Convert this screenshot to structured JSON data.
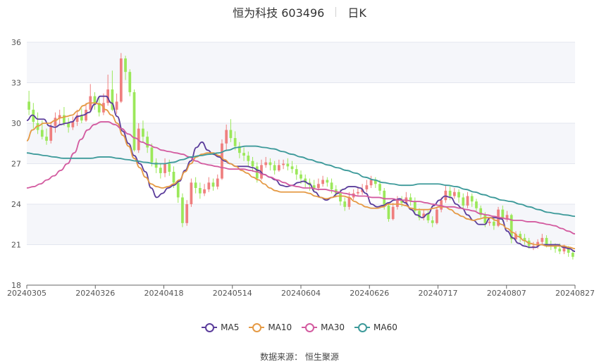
{
  "header": {
    "stock": "恒为科技 603496",
    "period": "日K"
  },
  "source": "数据来源：  恒生聚源",
  "colors": {
    "up": "#ef7f7f",
    "down": "#9be85a",
    "MA5": "#5b3d9b",
    "MA10": "#e59a45",
    "MA30": "#d35ba0",
    "MA60": "#3d9a9a",
    "band": "#f5f6fa",
    "grid": "#e3e6ef"
  },
  "chart_data": {
    "type": "candlestick",
    "title": "恒为科技 603496",
    "ylim": [
      18,
      36
    ],
    "yticks": [
      18,
      21,
      24,
      27,
      30,
      33,
      36
    ],
    "xticks": [
      "20240305",
      "20240326",
      "20240418",
      "20240514",
      "20240604",
      "20240626",
      "20240717",
      "20240807",
      "20240827"
    ],
    "grid": true,
    "legend_position": "bottom",
    "candles": [
      [
        31.6,
        31.0,
        32.4,
        30.6
      ],
      [
        31.0,
        30.1,
        31.5,
        29.6
      ],
      [
        30.0,
        29.5,
        30.8,
        29.2
      ],
      [
        29.5,
        29.0,
        30.2,
        28.8
      ],
      [
        29.0,
        28.7,
        29.6,
        28.4
      ],
      [
        28.7,
        29.8,
        30.1,
        28.5
      ],
      [
        29.8,
        30.4,
        30.8,
        29.3
      ],
      [
        30.4,
        30.6,
        31.0,
        29.9
      ],
      [
        30.6,
        30.0,
        31.2,
        29.8
      ],
      [
        30.0,
        29.7,
        30.4,
        29.3
      ],
      [
        29.7,
        30.1,
        30.5,
        29.5
      ],
      [
        30.1,
        30.6,
        31.0,
        29.8
      ],
      [
        30.6,
        30.2,
        31.1,
        30.0
      ],
      [
        30.2,
        31.0,
        31.5,
        30.1
      ],
      [
        31.0,
        32.0,
        32.9,
        30.8
      ],
      [
        32.0,
        31.5,
        32.3,
        31.0
      ],
      [
        31.5,
        30.8,
        31.9,
        30.5
      ],
      [
        30.8,
        31.5,
        32.2,
        30.6
      ],
      [
        31.5,
        32.5,
        33.6,
        31.3
      ],
      [
        32.5,
        31.0,
        33.9,
        30.9
      ],
      [
        31.0,
        31.6,
        32.2,
        30.7
      ],
      [
        31.6,
        34.8,
        35.2,
        31.5
      ],
      [
        34.8,
        33.8,
        35.0,
        33.2
      ],
      [
        33.8,
        32.3,
        34.0,
        32.0
      ],
      [
        32.3,
        28.0,
        32.5,
        27.9
      ],
      [
        28.0,
        29.6,
        30.0,
        27.8
      ],
      [
        29.6,
        29.0,
        30.2,
        28.6
      ],
      [
        29.0,
        28.2,
        29.4,
        27.8
      ],
      [
        28.2,
        27.1,
        28.5,
        26.8
      ],
      [
        27.1,
        26.7,
        27.4,
        26.3
      ],
      [
        26.7,
        26.3,
        27.0,
        25.9
      ],
      [
        26.3,
        27.0,
        27.4,
        26.0
      ],
      [
        27.0,
        26.4,
        27.3,
        26.1
      ],
      [
        26.4,
        25.6,
        26.8,
        25.2
      ],
      [
        25.6,
        24.5,
        25.8,
        24.1
      ],
      [
        24.5,
        22.6,
        24.8,
        22.3
      ],
      [
        22.6,
        24.0,
        24.3,
        22.4
      ],
      [
        24.0,
        25.6,
        25.9,
        23.8
      ],
      [
        25.6,
        25.2,
        26.0,
        24.8
      ],
      [
        25.2,
        24.8,
        25.6,
        24.4
      ],
      [
        24.8,
        25.1,
        25.5,
        24.6
      ],
      [
        25.1,
        25.6,
        26.0,
        24.9
      ],
      [
        25.6,
        25.3,
        25.9,
        25.0
      ],
      [
        25.3,
        25.9,
        26.2,
        25.1
      ],
      [
        25.9,
        28.5,
        28.8,
        25.8
      ],
      [
        28.5,
        29.5,
        29.9,
        28.0
      ],
      [
        29.5,
        28.9,
        30.3,
        28.6
      ],
      [
        28.9,
        28.3,
        29.4,
        28.0
      ],
      [
        28.3,
        27.8,
        28.6,
        27.4
      ],
      [
        27.8,
        27.6,
        28.2,
        27.2
      ],
      [
        27.6,
        27.2,
        27.9,
        26.8
      ],
      [
        27.2,
        26.8,
        27.5,
        26.4
      ],
      [
        26.8,
        25.9,
        27.1,
        25.6
      ],
      [
        25.9,
        26.9,
        27.3,
        25.8
      ],
      [
        26.9,
        27.1,
        27.5,
        26.7
      ],
      [
        27.1,
        26.9,
        27.4,
        26.5
      ],
      [
        26.9,
        26.5,
        27.2,
        26.2
      ],
      [
        26.5,
        26.9,
        27.3,
        26.4
      ],
      [
        26.9,
        27.0,
        27.3,
        26.6
      ],
      [
        27.0,
        26.8,
        27.4,
        26.5
      ],
      [
        26.8,
        26.6,
        27.2,
        26.3
      ],
      [
        26.6,
        26.2,
        26.9,
        25.8
      ],
      [
        26.2,
        25.9,
        26.5,
        25.5
      ],
      [
        25.9,
        25.6,
        26.2,
        25.2
      ],
      [
        25.6,
        25.4,
        25.9,
        25.0
      ],
      [
        25.4,
        25.2,
        25.8,
        24.9
      ],
      [
        25.2,
        25.5,
        25.9,
        25.0
      ],
      [
        25.5,
        25.8,
        26.1,
        25.3
      ],
      [
        25.8,
        25.6,
        26.0,
        25.3
      ],
      [
        25.6,
        25.1,
        25.9,
        24.8
      ],
      [
        25.1,
        24.8,
        25.4,
        24.5
      ],
      [
        24.8,
        24.2,
        25.1,
        23.9
      ],
      [
        24.2,
        23.8,
        24.5,
        23.5
      ],
      [
        23.8,
        24.5,
        24.9,
        23.6
      ],
      [
        24.5,
        24.8,
        25.1,
        24.3
      ],
      [
        24.8,
        24.9,
        25.3,
        24.6
      ],
      [
        24.9,
        25.1,
        25.5,
        24.7
      ],
      [
        25.1,
        25.4,
        25.8,
        24.9
      ],
      [
        25.4,
        25.8,
        26.1,
        25.2
      ],
      [
        25.8,
        25.5,
        26.0,
        25.2
      ],
      [
        25.5,
        25.0,
        25.8,
        24.7
      ],
      [
        25.0,
        23.9,
        25.2,
        23.6
      ],
      [
        23.9,
        22.9,
        24.1,
        22.7
      ],
      [
        22.9,
        23.8,
        24.1,
        22.8
      ],
      [
        23.8,
        24.3,
        24.6,
        23.6
      ],
      [
        24.3,
        24.1,
        24.6,
        23.8
      ],
      [
        24.1,
        24.5,
        24.9,
        23.9
      ],
      [
        24.5,
        24.2,
        24.8,
        23.9
      ],
      [
        24.2,
        23.5,
        24.5,
        23.2
      ],
      [
        23.5,
        23.0,
        23.7,
        22.8
      ],
      [
        23.0,
        23.3,
        23.6,
        22.8
      ],
      [
        23.3,
        22.8,
        23.5,
        22.6
      ],
      [
        22.8,
        22.6,
        23.1,
        22.3
      ],
      [
        22.6,
        23.6,
        23.8,
        22.5
      ],
      [
        23.6,
        24.3,
        24.5,
        23.4
      ],
      [
        24.3,
        25.0,
        25.4,
        24.1
      ],
      [
        25.0,
        24.6,
        25.3,
        24.3
      ],
      [
        24.6,
        24.9,
        25.2,
        24.4
      ],
      [
        24.9,
        24.5,
        25.1,
        24.1
      ],
      [
        24.5,
        23.9,
        24.8,
        23.6
      ],
      [
        23.9,
        24.6,
        24.9,
        23.7
      ],
      [
        24.6,
        24.2,
        24.8,
        23.8
      ],
      [
        24.2,
        23.7,
        24.4,
        23.5
      ],
      [
        23.7,
        23.2,
        23.9,
        22.9
      ],
      [
        23.2,
        22.6,
        23.4,
        22.3
      ],
      [
        22.6,
        22.7,
        23.0,
        22.4
      ],
      [
        22.7,
        22.4,
        23.0,
        22.1
      ],
      [
        22.4,
        23.6,
        23.8,
        22.3
      ],
      [
        23.6,
        22.9,
        23.9,
        22.7
      ],
      [
        22.9,
        23.2,
        23.5,
        22.7
      ],
      [
        23.2,
        21.4,
        23.3,
        21.1
      ],
      [
        21.4,
        21.8,
        22.0,
        21.2
      ],
      [
        21.8,
        21.5,
        22.0,
        21.2
      ],
      [
        21.5,
        21.3,
        21.8,
        21.0
      ],
      [
        21.3,
        20.9,
        21.5,
        20.7
      ],
      [
        20.9,
        20.9,
        21.2,
        20.6
      ],
      [
        20.9,
        21.2,
        21.4,
        20.7
      ],
      [
        21.2,
        21.5,
        21.8,
        21.0
      ],
      [
        21.5,
        21.0,
        21.7,
        20.8
      ],
      [
        21.0,
        20.9,
        21.3,
        20.6
      ],
      [
        20.9,
        20.7,
        21.1,
        20.4
      ],
      [
        20.7,
        20.5,
        21.1,
        20.3
      ],
      [
        20.5,
        20.8,
        21.0,
        20.3
      ],
      [
        20.8,
        20.4,
        20.9,
        20.1
      ],
      [
        20.4,
        20.1,
        20.6,
        19.9
      ]
    ],
    "series": [
      {
        "name": "MA5",
        "values": [
          30.2,
          30.6,
          30.3,
          30.3,
          29.8,
          29.7,
          29.9,
          30.0,
          30.1,
          30.5,
          30.6,
          30.8,
          31.4,
          32.0,
          32.0,
          31.5,
          30.5,
          29.4,
          28.5,
          27.6,
          27.0,
          26.4,
          25.2,
          24.5,
          24.8,
          25.2,
          25.4,
          25.7,
          26.5,
          27.2,
          28.2,
          28.6,
          28.0,
          27.7,
          27.5,
          27.2,
          27.0,
          26.8,
          26.8,
          26.8,
          26.7,
          26.5,
          26.2,
          26.0,
          25.8,
          25.4,
          25.3,
          25.4,
          25.6,
          25.7,
          25.5,
          24.9,
          24.5,
          24.3,
          24.5,
          24.8,
          25.1,
          25.3,
          25.3,
          25.2,
          24.8,
          24.0,
          23.8,
          23.9,
          24.1,
          24.3,
          24.4,
          24.1,
          23.6,
          23.2,
          23.0,
          23.3,
          23.9,
          24.3,
          24.6,
          24.5,
          24.0,
          23.7,
          23.2,
          22.8,
          22.5,
          22.5,
          23.0,
          23.0,
          22.9,
          22.0,
          21.5,
          21.1,
          20.9,
          20.8,
          20.8,
          21.0,
          21.0,
          21.0,
          21.0,
          20.8,
          20.7,
          20.5
        ]
      },
      {
        "name": "MA10",
        "values": [
          28.7,
          29.5,
          29.8,
          30.0,
          30.0,
          30.2,
          30.4,
          30.5,
          30.6,
          30.9,
          31.3,
          31.5,
          31.5,
          31.4,
          31.0,
          30.6,
          30.0,
          29.1,
          28.3,
          27.4,
          26.7,
          26.0,
          25.5,
          25.3,
          25.2,
          25.3,
          25.5,
          25.8,
          26.4,
          27.0,
          27.5,
          27.7,
          27.8,
          27.8,
          27.6,
          27.3,
          27.0,
          26.8,
          26.5,
          26.3,
          26.0,
          25.8,
          25.5,
          25.2,
          25.0,
          24.9,
          24.9,
          24.9,
          24.9,
          24.9,
          24.8,
          24.6,
          24.5,
          24.4,
          24.5,
          24.6,
          24.6,
          24.5,
          24.2,
          24.0,
          23.8,
          23.7,
          23.7,
          23.8,
          24.0,
          24.0,
          24.0,
          23.9,
          23.7,
          23.6,
          23.6,
          23.6,
          23.7,
          23.8,
          23.8,
          23.6,
          23.3,
          23.1,
          22.9,
          22.8,
          22.9,
          23.0,
          23.0,
          22.8,
          22.5,
          22.2,
          21.9,
          21.6,
          21.3,
          21.1,
          21.0,
          21.0,
          20.9,
          20.9,
          20.9,
          20.9,
          20.8,
          20.7
        ]
      },
      {
        "name": "MA30",
        "values": [
          25.2,
          25.3,
          25.5,
          25.8,
          26.1,
          26.5,
          27.0,
          27.8,
          28.8,
          29.5,
          29.9,
          30.1,
          30.1,
          29.9,
          29.6,
          29.2,
          28.9,
          28.6,
          28.4,
          28.2,
          28.0,
          27.9,
          27.8,
          27.7,
          27.5,
          27.2,
          27.0,
          26.9,
          26.8,
          26.7,
          26.6,
          26.6,
          26.6,
          26.5,
          26.4,
          26.2,
          26.0,
          25.8,
          25.6,
          25.4,
          25.3,
          25.2,
          25.2,
          25.1,
          25.1,
          25.0,
          24.9,
          24.8,
          24.7,
          24.6,
          24.6,
          24.5,
          24.5,
          24.4,
          24.4,
          24.3,
          24.3,
          24.2,
          24.2,
          24.1,
          24.0,
          23.9,
          23.8,
          23.8,
          23.7,
          23.6,
          23.5,
          23.3,
          23.2,
          23.1,
          23.0,
          22.9,
          22.8,
          22.8,
          22.7,
          22.7,
          22.6,
          22.5,
          22.4,
          22.2,
          22.0,
          21.8
        ]
      },
      {
        "name": "MA60",
        "values": [
          27.8,
          27.7,
          27.6,
          27.5,
          27.4,
          27.4,
          27.4,
          27.4,
          27.5,
          27.5,
          27.4,
          27.3,
          27.2,
          27.1,
          27.0,
          27.0,
          27.1,
          27.3,
          27.5,
          27.6,
          27.7,
          27.8,
          28.0,
          28.2,
          28.3,
          28.3,
          28.2,
          28.1,
          27.9,
          27.7,
          27.5,
          27.3,
          27.1,
          26.9,
          26.7,
          26.5,
          26.3,
          26.0,
          25.8,
          25.6,
          25.5,
          25.4,
          25.4,
          25.5,
          25.5,
          25.5,
          25.4,
          25.3,
          25.1,
          24.9,
          24.7,
          24.5,
          24.3,
          24.2,
          24.0,
          23.8,
          23.6,
          23.4,
          23.3,
          23.2,
          23.1
        ]
      }
    ]
  }
}
